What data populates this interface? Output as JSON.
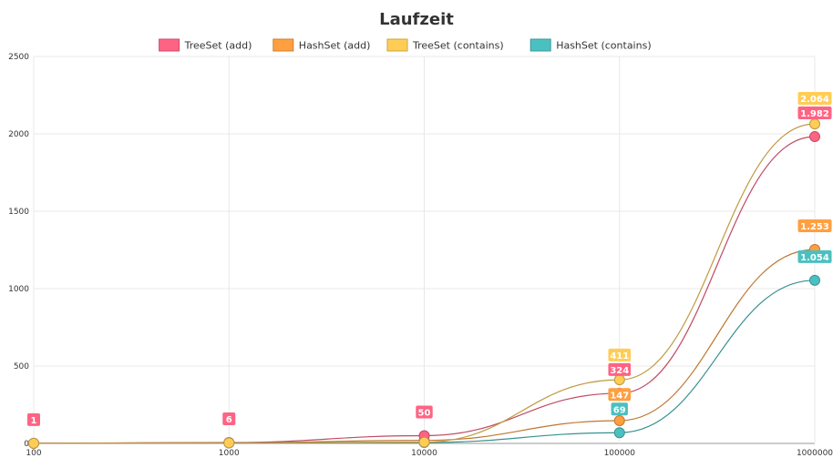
{
  "chart_data": {
    "type": "line",
    "title": "Laufzeit",
    "xlabel": "",
    "ylabel": "",
    "categories": [
      "100",
      "1000",
      "10000",
      "100000",
      "1000000"
    ],
    "ylim": [
      0,
      2500
    ],
    "yticks": [
      "0",
      "500",
      "1000",
      "1500",
      "2000",
      "2500"
    ],
    "grid": true,
    "legend_position": "top",
    "series": [
      {
        "name": "TreeSet (add)",
        "color": "#ff6384",
        "values": [
          1,
          6,
          50,
          324,
          1982
        ],
        "labels": [
          "1",
          "6",
          "50",
          "324",
          "1.982"
        ]
      },
      {
        "name": "HashSet (add)",
        "color": "#ff9f40",
        "values": [
          1,
          4,
          20,
          147,
          1253
        ],
        "labels": [
          "",
          "",
          "",
          "147",
          "1.253"
        ]
      },
      {
        "name": "TreeSet (contains)",
        "color": "#ffcd56",
        "values": [
          1,
          4,
          8,
          411,
          2064
        ],
        "labels": [
          "",
          "",
          "",
          "411",
          "2.064"
        ]
      },
      {
        "name": "HashSet (contains)",
        "color": "#4bc0c0",
        "values": [
          1,
          3,
          6,
          69,
          1054
        ],
        "labels": [
          "",
          "",
          "",
          "69",
          "1.054"
        ]
      }
    ]
  }
}
